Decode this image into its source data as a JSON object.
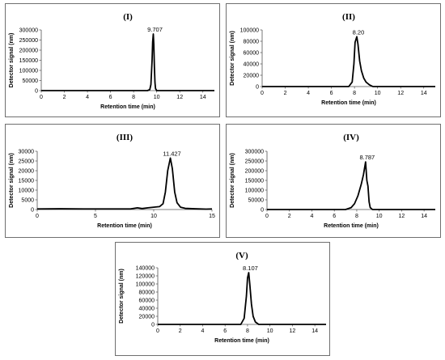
{
  "chart_data": [
    {
      "type": "line",
      "title": "(I)",
      "xlabel": "Retention time (min)",
      "ylabel": "Detector signal (nm)",
      "xlim": [
        0,
        15
      ],
      "ylim": [
        0,
        300000
      ],
      "xticks": [
        "0",
        "2",
        "4",
        "6",
        "8",
        "10",
        "12",
        "14"
      ],
      "yticks": [
        "0",
        "50000",
        "100000",
        "150000",
        "200000",
        "250000",
        "300000"
      ],
      "peak_label": "9.707",
      "grid": false,
      "series": [
        {
          "x": [
            0,
            9.2,
            9.4,
            9.5,
            9.6,
            9.65,
            9.707,
            9.75,
            9.8,
            9.85,
            9.9,
            10.0,
            15
          ],
          "y": [
            0,
            0,
            5000,
            30000,
            150000,
            240000,
            280000,
            230000,
            120000,
            40000,
            10000,
            0,
            0
          ]
        }
      ]
    },
    {
      "type": "line",
      "title": "(II)",
      "xlabel": "Retention time (min)",
      "ylabel": "Detector signal (nm)",
      "xlim": [
        0,
        15
      ],
      "ylim": [
        0,
        100000
      ],
      "xticks": [
        "0",
        "2",
        "4",
        "6",
        "8",
        "10",
        "12",
        "14"
      ],
      "yticks": [
        "0",
        "20000",
        "40000",
        "60000",
        "80000",
        "100000"
      ],
      "peak_label": "8.20",
      "grid": false,
      "series": [
        {
          "x": [
            0,
            7.5,
            7.8,
            7.95,
            8.05,
            8.2,
            8.3,
            8.45,
            8.6,
            8.8,
            9.0,
            9.3,
            9.6,
            15
          ],
          "y": [
            0,
            0,
            8000,
            40000,
            78000,
            88000,
            75000,
            45000,
            28000,
            15000,
            8000,
            3000,
            0,
            0
          ]
        }
      ]
    },
    {
      "type": "line",
      "title": "(III)",
      "xlabel": "Retention time (min)",
      "ylabel": "Detector signal (nm)",
      "xlim": [
        0,
        15
      ],
      "ylim": [
        0,
        30000
      ],
      "xticks": [
        "0",
        "5",
        "10",
        "15"
      ],
      "yticks": [
        "0",
        "5000",
        "10000",
        "15000",
        "20000",
        "25000",
        "30000"
      ],
      "peak_label": "11.427",
      "grid": false,
      "series": [
        {
          "x": [
            0,
            2,
            4,
            6,
            8,
            8.6,
            9,
            9.5,
            10,
            10.5,
            10.8,
            11.0,
            11.2,
            11.427,
            11.6,
            11.8,
            12.0,
            12.3,
            12.7,
            13.5,
            14.5,
            15
          ],
          "y": [
            300,
            400,
            300,
            300,
            300,
            900,
            500,
            900,
            1200,
            1500,
            3000,
            9000,
            20000,
            26500,
            21000,
            9000,
            3500,
            1200,
            600,
            400,
            200,
            300
          ]
        }
      ]
    },
    {
      "type": "line",
      "title": "(IV)",
      "xlabel": "Retention time (min)",
      "ylabel": "Detector signal (nm)",
      "xlim": [
        0,
        15
      ],
      "ylim": [
        0,
        300000
      ],
      "xticks": [
        "0",
        "2",
        "4",
        "6",
        "8",
        "10",
        "12",
        "14"
      ],
      "yticks": [
        "0",
        "50000",
        "100000",
        "150000",
        "200000",
        "250000",
        "300000"
      ],
      "peak_label": "8.787",
      "grid": false,
      "series": [
        {
          "x": [
            0,
            7.0,
            7.5,
            7.8,
            8.1,
            8.4,
            8.6,
            8.787,
            8.9,
            9.0,
            9.1,
            9.2,
            9.4,
            15
          ],
          "y": [
            0,
            0,
            10000,
            30000,
            70000,
            130000,
            180000,
            245000,
            150000,
            120000,
            40000,
            10000,
            0,
            0
          ]
        }
      ]
    },
    {
      "type": "line",
      "title": "(V)",
      "xlabel": "Retention time (min)",
      "ylabel": "Detector signal (nm)",
      "xlim": [
        0,
        15
      ],
      "ylim": [
        0,
        140000
      ],
      "xticks": [
        "0",
        "2",
        "4",
        "6",
        "8",
        "10",
        "12",
        "14"
      ],
      "yticks": [
        "0",
        "20000",
        "40000",
        "60000",
        "80000",
        "100000",
        "120000",
        "140000"
      ],
      "peak_label": "8.107",
      "grid": false,
      "series": [
        {
          "x": [
            0,
            7.4,
            7.7,
            7.9,
            8.0,
            8.107,
            8.2,
            8.35,
            8.5,
            8.7,
            9.0,
            15
          ],
          "y": [
            0,
            0,
            15000,
            70000,
            115000,
            128000,
            100000,
            50000,
            20000,
            6000,
            0,
            0
          ]
        }
      ]
    }
  ]
}
